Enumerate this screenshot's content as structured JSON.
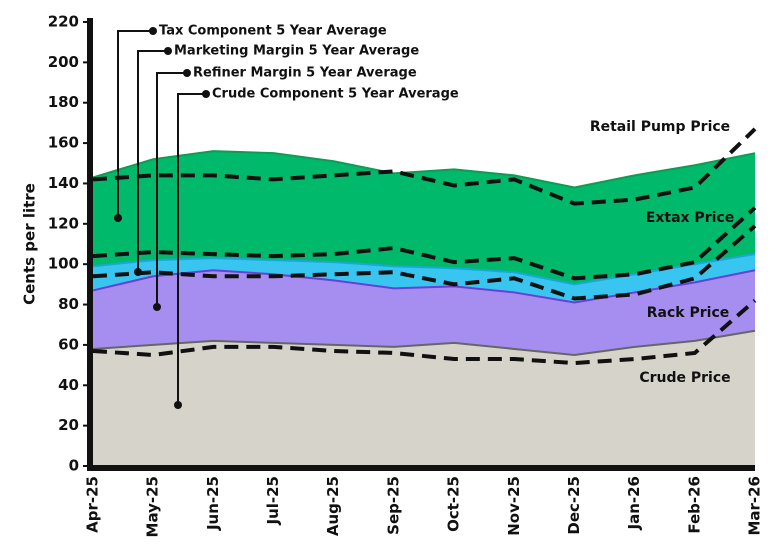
{
  "chart_data": {
    "type": "area",
    "ylabel": "Cents per litre",
    "categories": [
      "Apr-25",
      "May-25",
      "Jun-25",
      "Jul-25",
      "Aug-25",
      "Sep-25",
      "Oct-25",
      "Nov-25",
      "Dec-25",
      "Jan-26",
      "Feb-26",
      "Mar-26"
    ],
    "ylim": [
      0,
      220
    ],
    "yticks": [
      0,
      20,
      40,
      60,
      80,
      100,
      120,
      140,
      160,
      180,
      200,
      220
    ],
    "series": [
      {
        "name": "Retail Pump Price",
        "style": "area",
        "color": "#00b96b",
        "edge": "#119a55",
        "values": [
          143,
          152,
          156,
          155,
          151,
          145,
          147,
          144,
          138,
          144,
          149,
          155
        ]
      },
      {
        "name": "Extax Price",
        "style": "area",
        "color": "#38c6f0",
        "edge": "#1aa8d8",
        "values": [
          99,
          102,
          103,
          102,
          101,
          99,
          98,
          96,
          90,
          95,
          100,
          105
        ]
      },
      {
        "name": "Rack Price",
        "style": "area",
        "color": "#a68ef0",
        "edge": "#6a3fd6",
        "values": [
          87,
          94,
          97,
          95,
          92,
          88,
          89,
          86,
          81,
          86,
          91,
          97
        ]
      },
      {
        "name": "Crude Price",
        "style": "area",
        "color": "#d6d3cb",
        "edge": "#666666",
        "values": [
          58,
          60,
          62,
          61,
          60,
          59,
          61,
          58,
          55,
          59,
          62,
          67
        ]
      },
      {
        "name": "Tax Component 5 Year Average",
        "style": "dashed",
        "color": "#111111",
        "values": [
          142,
          144,
          144,
          142,
          144,
          146,
          139,
          142,
          130,
          132,
          138,
          167
        ]
      },
      {
        "name": "Marketing Margin 5 Year Average",
        "style": "dashed",
        "color": "#111111",
        "values": [
          104,
          106,
          105,
          104,
          105,
          108,
          101,
          103,
          93,
          95,
          101,
          128
        ]
      },
      {
        "name": "Refiner Margin 5 Year Average",
        "style": "dashed",
        "color": "#111111",
        "values": [
          94,
          96,
          94,
          94,
          95,
          96,
          90,
          93,
          83,
          85,
          93,
          119
        ]
      },
      {
        "name": "Crude Component 5 Year Average",
        "style": "dashed",
        "color": "#111111",
        "values": [
          57,
          55,
          59,
          59,
          57,
          56,
          53,
          53,
          51,
          53,
          56,
          82
        ]
      }
    ]
  }
}
